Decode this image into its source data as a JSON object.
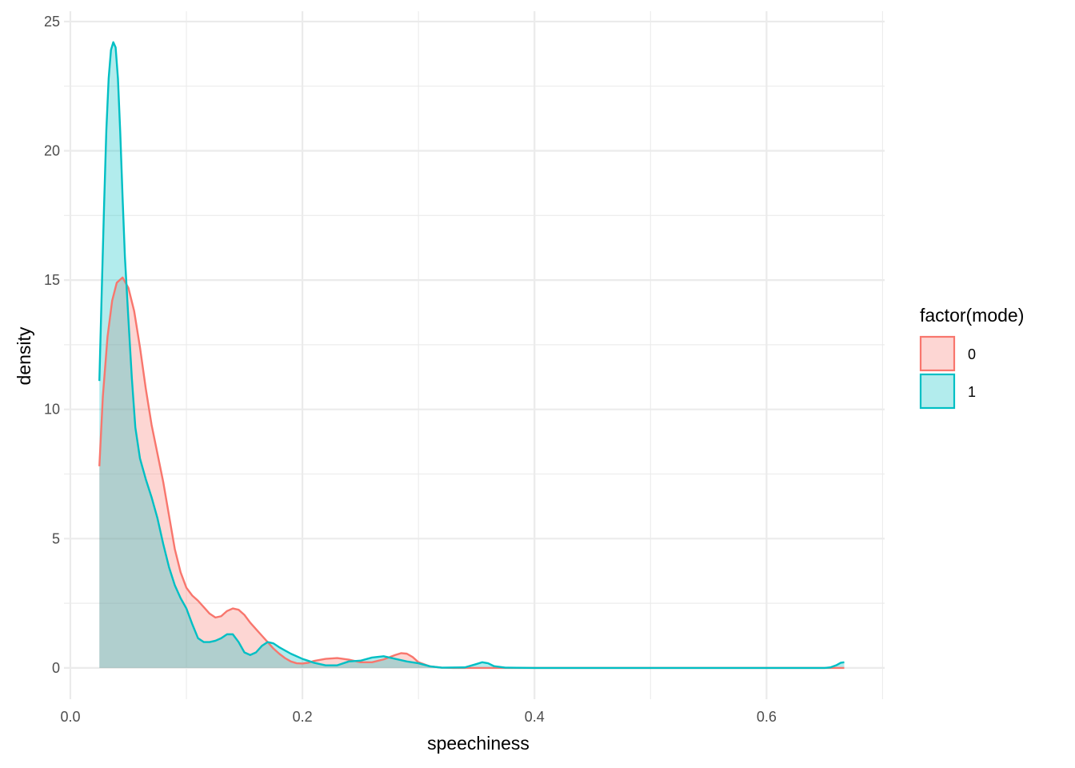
{
  "chart_data": {
    "type": "area",
    "subtype": "density",
    "title": "",
    "xlabel": "speechiness",
    "ylabel": "density",
    "xlim": [
      -0.0055,
      0.7018
    ],
    "ylim": [
      -1.21,
      25.4
    ],
    "x_ticks": [
      0.0,
      0.2,
      0.4,
      0.6
    ],
    "x_tick_labels": [
      "0.0",
      "0.2",
      "0.4",
      "0.6"
    ],
    "y_ticks": [
      0,
      5,
      10,
      15,
      20,
      25
    ],
    "y_tick_labels": [
      "0",
      "5",
      "10",
      "15",
      "20",
      "25"
    ],
    "grid": true,
    "legend": {
      "title": "factor(mode)",
      "position": "right"
    },
    "series": [
      {
        "name": "0",
        "color": "#F8766D",
        "fill_opacity": 0.3,
        "points": [
          [
            0.025,
            7.8
          ],
          [
            0.028,
            10.5
          ],
          [
            0.032,
            12.8
          ],
          [
            0.036,
            14.2
          ],
          [
            0.04,
            14.9
          ],
          [
            0.045,
            15.1
          ],
          [
            0.05,
            14.7
          ],
          [
            0.055,
            13.8
          ],
          [
            0.06,
            12.4
          ],
          [
            0.065,
            10.8
          ],
          [
            0.07,
            9.4
          ],
          [
            0.075,
            8.3
          ],
          [
            0.08,
            7.2
          ],
          [
            0.085,
            5.9
          ],
          [
            0.09,
            4.6
          ],
          [
            0.095,
            3.7
          ],
          [
            0.1,
            3.1
          ],
          [
            0.105,
            2.8
          ],
          [
            0.11,
            2.6
          ],
          [
            0.115,
            2.35
          ],
          [
            0.12,
            2.1
          ],
          [
            0.125,
            1.95
          ],
          [
            0.13,
            2.0
          ],
          [
            0.135,
            2.2
          ],
          [
            0.14,
            2.3
          ],
          [
            0.145,
            2.25
          ],
          [
            0.15,
            2.05
          ],
          [
            0.155,
            1.75
          ],
          [
            0.16,
            1.5
          ],
          [
            0.165,
            1.25
          ],
          [
            0.17,
            1.0
          ],
          [
            0.175,
            0.75
          ],
          [
            0.18,
            0.55
          ],
          [
            0.185,
            0.38
          ],
          [
            0.19,
            0.25
          ],
          [
            0.195,
            0.18
          ],
          [
            0.2,
            0.17
          ],
          [
            0.205,
            0.2
          ],
          [
            0.21,
            0.27
          ],
          [
            0.22,
            0.35
          ],
          [
            0.23,
            0.38
          ],
          [
            0.24,
            0.32
          ],
          [
            0.25,
            0.22
          ],
          [
            0.26,
            0.22
          ],
          [
            0.27,
            0.33
          ],
          [
            0.28,
            0.5
          ],
          [
            0.285,
            0.57
          ],
          [
            0.29,
            0.55
          ],
          [
            0.295,
            0.42
          ],
          [
            0.3,
            0.22
          ],
          [
            0.31,
            0.06
          ],
          [
            0.32,
            0.01
          ],
          [
            0.33,
            0.0
          ],
          [
            0.4,
            0.0
          ],
          [
            0.5,
            0.0
          ],
          [
            0.6,
            0.0
          ],
          [
            0.667,
            0.0
          ]
        ]
      },
      {
        "name": "1",
        "color": "#00BFC4",
        "fill_opacity": 0.3,
        "points": [
          [
            0.025,
            11.1
          ],
          [
            0.027,
            14.5
          ],
          [
            0.029,
            17.8
          ],
          [
            0.031,
            20.8
          ],
          [
            0.033,
            22.8
          ],
          [
            0.035,
            23.9
          ],
          [
            0.037,
            24.2
          ],
          [
            0.039,
            24.0
          ],
          [
            0.041,
            22.8
          ],
          [
            0.043,
            20.7
          ],
          [
            0.045,
            18.2
          ],
          [
            0.047,
            15.9
          ],
          [
            0.05,
            13.5
          ],
          [
            0.053,
            11.2
          ],
          [
            0.056,
            9.3
          ],
          [
            0.06,
            8.1
          ],
          [
            0.065,
            7.3
          ],
          [
            0.07,
            6.6
          ],
          [
            0.075,
            5.8
          ],
          [
            0.08,
            4.8
          ],
          [
            0.085,
            3.9
          ],
          [
            0.09,
            3.2
          ],
          [
            0.095,
            2.7
          ],
          [
            0.1,
            2.3
          ],
          [
            0.105,
            1.7
          ],
          [
            0.11,
            1.15
          ],
          [
            0.115,
            1.0
          ],
          [
            0.12,
            1.0
          ],
          [
            0.125,
            1.05
          ],
          [
            0.13,
            1.15
          ],
          [
            0.135,
            1.3
          ],
          [
            0.14,
            1.3
          ],
          [
            0.145,
            1.0
          ],
          [
            0.15,
            0.6
          ],
          [
            0.155,
            0.5
          ],
          [
            0.16,
            0.6
          ],
          [
            0.165,
            0.85
          ],
          [
            0.17,
            1.0
          ],
          [
            0.175,
            0.95
          ],
          [
            0.18,
            0.8
          ],
          [
            0.19,
            0.55
          ],
          [
            0.2,
            0.35
          ],
          [
            0.21,
            0.2
          ],
          [
            0.22,
            0.1
          ],
          [
            0.23,
            0.1
          ],
          [
            0.24,
            0.25
          ],
          [
            0.25,
            0.28
          ],
          [
            0.26,
            0.4
          ],
          [
            0.27,
            0.45
          ],
          [
            0.28,
            0.35
          ],
          [
            0.29,
            0.25
          ],
          [
            0.3,
            0.18
          ],
          [
            0.31,
            0.06
          ],
          [
            0.32,
            0.01
          ],
          [
            0.34,
            0.02
          ],
          [
            0.35,
            0.15
          ],
          [
            0.355,
            0.22
          ],
          [
            0.36,
            0.18
          ],
          [
            0.365,
            0.07
          ],
          [
            0.375,
            0.01
          ],
          [
            0.4,
            0.0
          ],
          [
            0.5,
            0.0
          ],
          [
            0.6,
            0.0
          ],
          [
            0.65,
            0.0
          ],
          [
            0.655,
            0.02
          ],
          [
            0.66,
            0.1
          ],
          [
            0.664,
            0.2
          ],
          [
            0.667,
            0.22
          ]
        ]
      }
    ]
  }
}
